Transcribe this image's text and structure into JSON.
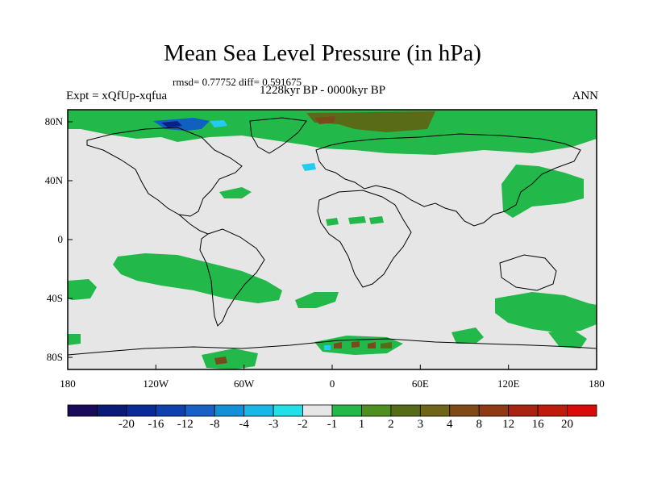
{
  "title": "Mean Sea Level Pressure (in hPa)",
  "stats": "rmsd= 0.77752 diff= 0.591675",
  "period": "1228kyr BP - 0000kyr BP",
  "experiment": "Expt = xQfUp-xqfua",
  "season": "ANN",
  "x_ticks": [
    "180",
    "120W",
    "60W",
    "0",
    "60E",
    "120E",
    "180"
  ],
  "y_ticks": [
    "80N",
    "40N",
    "0",
    "40S",
    "80S"
  ],
  "colors": {
    "background": "#e6e6e6",
    "green": "#22b84a",
    "dark_green": "#4f7f18",
    "olive": "#6f6518",
    "brown": "#8b4a1e",
    "blue": "#1060c0",
    "cyan": "#22ccee",
    "dark_blue": "#102080"
  },
  "legend": {
    "colors": [
      "#1a0a5a",
      "#0a1a78",
      "#0b2a9a",
      "#1040b0",
      "#1860c8",
      "#1090d8",
      "#16b8e8",
      "#22e0e8",
      "#e6e6e6",
      "#22b84a",
      "#4f8f20",
      "#556b18",
      "#6f6518",
      "#804a18",
      "#8f3a14",
      "#a82410",
      "#c01a0c",
      "#d80a0a"
    ],
    "labels": [
      "-20",
      "-16",
      "-12",
      "-8",
      "-4",
      "-3",
      "-2",
      "-1",
      "1",
      "2",
      "3",
      "4",
      "8",
      "12",
      "16",
      "20"
    ]
  }
}
